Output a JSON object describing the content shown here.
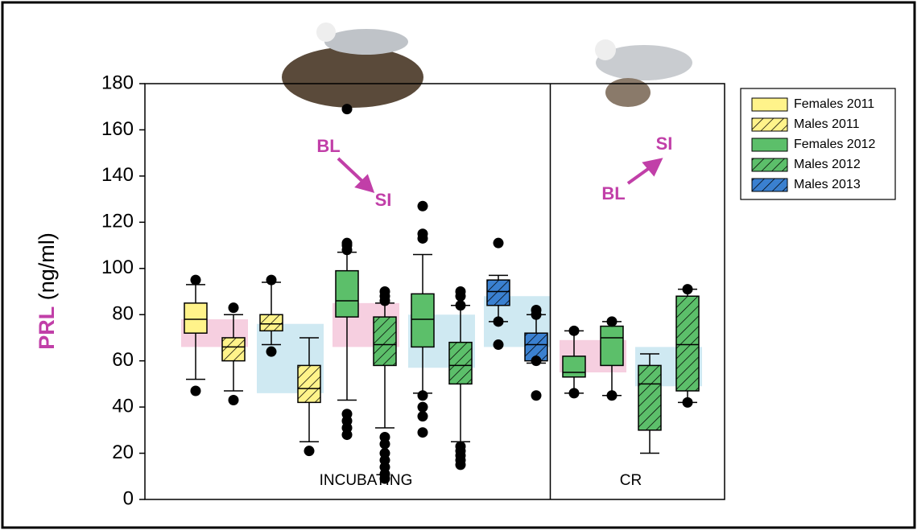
{
  "chart_data": {
    "type": "box",
    "ylabel": {
      "highlight": "PRL",
      "rest": "(ng/ml)"
    },
    "ylim": [
      0,
      180
    ],
    "yticks": [
      0,
      20,
      40,
      60,
      80,
      100,
      120,
      140,
      160,
      180
    ],
    "series": [
      {
        "name": "Females 2011",
        "color": "#fff38a",
        "hatch": false
      },
      {
        "name": "Males 2011",
        "color": "#fff38a",
        "hatch": true
      },
      {
        "name": "Females 2012",
        "color": "#5cbf6a",
        "hatch": false
      },
      {
        "name": "Males 2012",
        "color": "#5cbf6a",
        "hatch": true
      },
      {
        "name": "Males 2013",
        "color": "#3a80d0",
        "hatch": true
      }
    ],
    "boxes": [
      {
        "series": 0,
        "min": 52,
        "q1": 72,
        "median": 78,
        "q3": 85,
        "max": 93,
        "outliers": [
          47,
          95
        ]
      },
      {
        "series": 1,
        "min": 47,
        "q1": 60,
        "median": 66,
        "q3": 70,
        "max": 80,
        "outliers": [
          43,
          83
        ]
      },
      {
        "series": 1,
        "min": 67,
        "q1": 73,
        "median": 76,
        "q3": 80,
        "max": 94,
        "outliers": [
          64,
          95
        ]
      },
      {
        "series": 1,
        "min": 25,
        "q1": 42,
        "median": 48,
        "q3": 58,
        "max": 70,
        "outliers": [
          21
        ]
      },
      {
        "series": 2,
        "min": 43,
        "q1": 79,
        "median": 86,
        "q3": 99,
        "max": 107,
        "outliers": [
          28,
          31,
          34,
          37,
          108,
          110,
          111,
          169
        ]
      },
      {
        "series": 3,
        "min": 31,
        "q1": 58,
        "median": 67,
        "q3": 79,
        "max": 85,
        "outliers": [
          9,
          11,
          14,
          17,
          20,
          24,
          27,
          86,
          88,
          90
        ]
      },
      {
        "series": 2,
        "min": 46,
        "q1": 66,
        "median": 78,
        "q3": 89,
        "max": 106,
        "outliers": [
          29,
          36,
          40,
          45,
          113,
          115,
          127
        ]
      },
      {
        "series": 3,
        "min": 25,
        "q1": 50,
        "median": 58,
        "q3": 68,
        "max": 84,
        "outliers": [
          15,
          17,
          19,
          21,
          23,
          84,
          88,
          90
        ]
      },
      {
        "series": 4,
        "min": 77,
        "q1": 84,
        "median": 90,
        "q3": 95,
        "max": 97,
        "outliers": [
          67,
          77,
          111
        ]
      },
      {
        "series": 4,
        "min": 59,
        "q1": 60,
        "median": 67,
        "q3": 72,
        "max": 80,
        "outliers": [
          45,
          60,
          80,
          82
        ]
      },
      {
        "series": 2,
        "min": 46,
        "q1": 53,
        "median": 55,
        "q3": 62,
        "max": 73,
        "outliers": [
          46,
          73
        ]
      },
      {
        "series": 2,
        "min": 45,
        "q1": 58,
        "median": 70,
        "q3": 75,
        "max": 77,
        "outliers": [
          45,
          77
        ]
      },
      {
        "series": 3,
        "min": 20,
        "q1": 30,
        "median": 50,
        "q3": 58,
        "max": 63,
        "outliers": []
      },
      {
        "series": 3,
        "min": 42,
        "q1": 47,
        "median": 67,
        "q3": 88,
        "max": 91,
        "outliers": [
          42,
          91
        ]
      }
    ],
    "shaded_ranges": [
      {
        "low": 66,
        "high": 78,
        "color": "#f6cfe0",
        "first": 0,
        "last": 1
      },
      {
        "low": 46,
        "high": 76,
        "color": "#cfe9f2",
        "first": 2,
        "last": 3
      },
      {
        "low": 66,
        "high": 85,
        "color": "#f6cfe0",
        "first": 4,
        "last": 5
      },
      {
        "low": 57,
        "high": 80,
        "color": "#cfe9f2",
        "first": 6,
        "last": 7
      },
      {
        "low": 66,
        "high": 88,
        "color": "#cfe9f2",
        "first": 8,
        "last": 9
      },
      {
        "low": 55,
        "high": 69,
        "color": "#f6cfe0",
        "first": 10,
        "last": 11
      },
      {
        "low": 49,
        "high": 66,
        "color": "#cfe9f2",
        "first": 12,
        "last": 13
      }
    ],
    "sections": [
      {
        "label": "INCUBATING",
        "first": 0,
        "last": 9
      },
      {
        "label": "CR",
        "first": 10,
        "last": 13
      }
    ],
    "annotations": [
      "BL",
      "SI",
      "BL",
      "SI"
    ]
  }
}
